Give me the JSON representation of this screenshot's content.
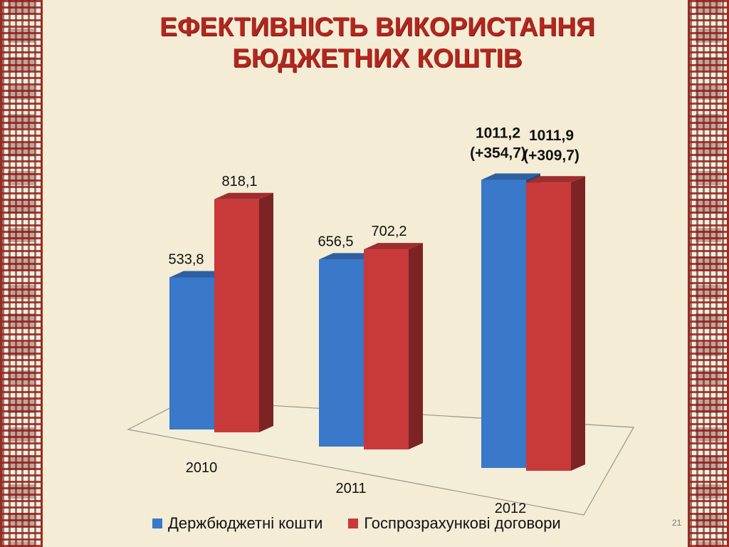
{
  "slide": {
    "title_line1": "ЕФЕКТИВНІСТЬ ВИКОРИСТАННЯ",
    "title_line2": "БЮДЖЕТНИХ КОШТІВ",
    "page_number": "21"
  },
  "chart_data": {
    "type": "bar",
    "categories": [
      "2010",
      "2011",
      "2012"
    ],
    "series": [
      {
        "name": "Держбюджетні кошти",
        "color": "#3a78c9",
        "values": [
          533.8,
          656.5,
          1011.2
        ],
        "labels": [
          "533,8",
          "656,5",
          "1011,2"
        ],
        "label_notes": [
          "",
          "",
          "(+354,7)"
        ]
      },
      {
        "name": "Госпрозрахункові договори",
        "color": "#c8393a",
        "values": [
          818.1,
          702.2,
          1011.9
        ],
        "labels": [
          "818,1",
          "702,2",
          "1011,9"
        ],
        "label_notes": [
          "",
          "",
          "(+309,7)"
        ]
      }
    ],
    "ylim": [
      0,
      1100
    ],
    "legend_position": "bottom",
    "grid": false,
    "style": "3d-clustered-columns"
  }
}
